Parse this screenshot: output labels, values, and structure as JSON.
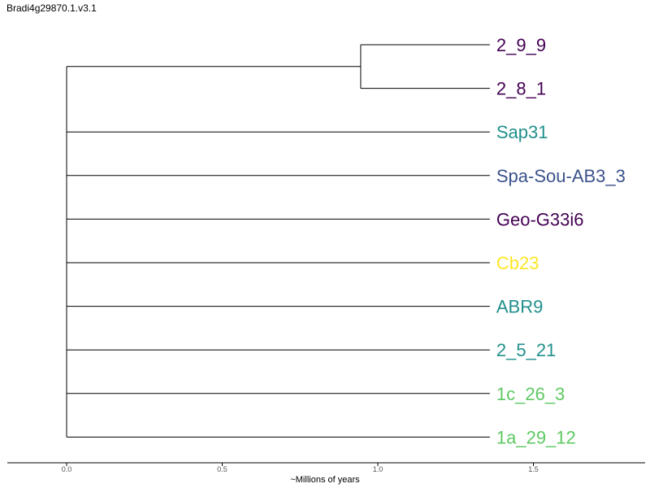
{
  "title": "Bradi4g29870.1.v3.1",
  "xlabel": "~Millions of years",
  "axis": {
    "ticks": [
      0.0,
      0.5,
      1.0,
      1.5
    ],
    "tick_labels": [
      "0.0",
      "0.5",
      "1.0",
      "1.5"
    ],
    "xlim": [
      -0.19,
      1.85
    ]
  },
  "tree": {
    "root_x": 0.0,
    "internal_nodes": [
      {
        "x": 0.945,
        "children": [
          "2_9_9",
          "2_8_1"
        ]
      }
    ],
    "tips": [
      {
        "label": "2_9_9",
        "x": 1.36,
        "color": "#440154",
        "parent": 0
      },
      {
        "label": "2_8_1",
        "x": 1.36,
        "color": "#440154",
        "parent": 0
      },
      {
        "label": "Sap31",
        "x": 1.36,
        "color": "#21908c"
      },
      {
        "label": "Spa-Sou-AB3_3",
        "x": 1.36,
        "color": "#3b528b"
      },
      {
        "label": "Geo-G33i6",
        "x": 1.36,
        "color": "#440154"
      },
      {
        "label": "Cb23",
        "x": 1.36,
        "color": "#fde725"
      },
      {
        "label": "ABR9",
        "x": 1.36,
        "color": "#21908c"
      },
      {
        "label": "2_5_21",
        "x": 1.36,
        "color": "#21908c"
      },
      {
        "label": "1c_26_3",
        "x": 1.36,
        "color": "#5ec962"
      },
      {
        "label": "1a_29_12",
        "x": 1.36,
        "color": "#5ec962"
      }
    ]
  }
}
